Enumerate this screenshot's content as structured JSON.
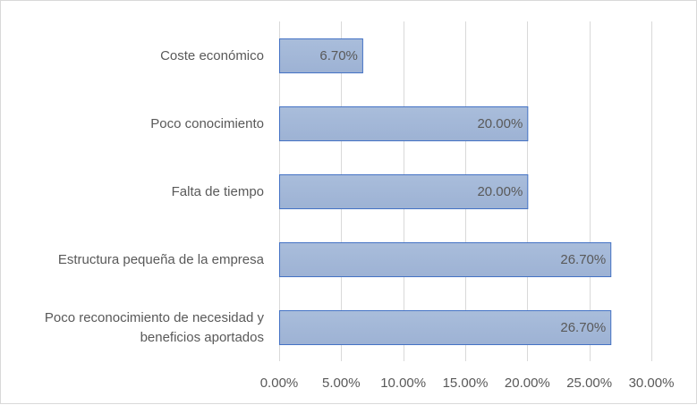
{
  "chart_data": {
    "type": "bar",
    "orientation": "horizontal",
    "categories": [
      "Coste económico",
      "Poco conocimiento",
      "Falta de tiempo",
      "Estructura pequeña de la empresa",
      "Poco reconocimiento de necesidad y beneficios aportados"
    ],
    "category_lines": [
      [
        "Coste económico"
      ],
      [
        "Poco conocimiento"
      ],
      [
        "Falta de tiempo"
      ],
      [
        "Estructura pequeña de la empresa"
      ],
      [
        "Poco reconocimiento de necesidad y",
        "beneficios aportados"
      ]
    ],
    "values": [
      6.7,
      20.0,
      20.0,
      26.7,
      26.7
    ],
    "data_labels": [
      "6.70%",
      "20.00%",
      "20.00%",
      "26.70%",
      "26.70%"
    ],
    "xlim": [
      0,
      30
    ],
    "x_ticks": [
      0,
      5,
      10,
      15,
      20,
      25,
      30
    ],
    "x_tick_labels": [
      "0.00%",
      "5.00%",
      "10.00%",
      "15.00%",
      "20.00%",
      "25.00%",
      "30.00%"
    ],
    "title": "",
    "xlabel": "",
    "ylabel": "",
    "grid": "vertical",
    "legend": "none",
    "colors": {
      "bar_top": "#a9bddb",
      "bar_bottom": "#9db2d4",
      "bar_border": "#4472c4",
      "grid": "#d9d9d9",
      "text": "#595959"
    }
  }
}
